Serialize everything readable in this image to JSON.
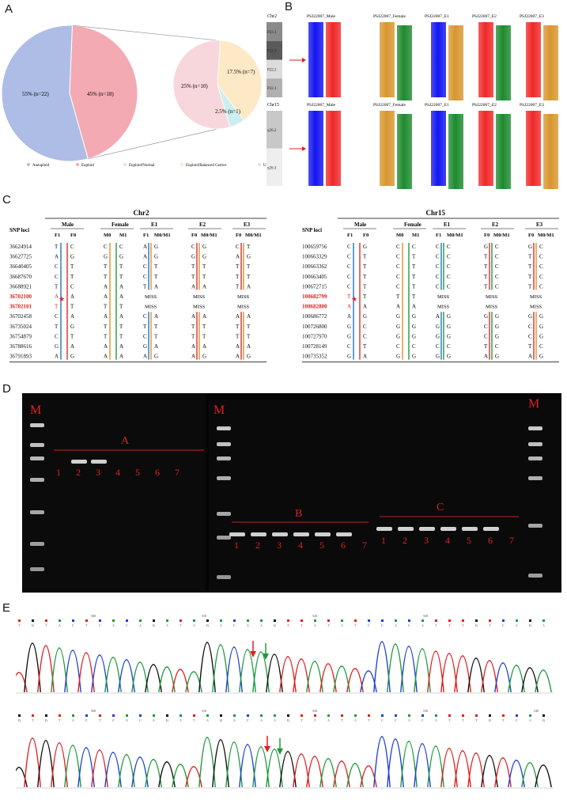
{
  "panels": {
    "A": "A",
    "B": "B",
    "C": "C",
    "D": "D",
    "E": "E"
  },
  "A": {
    "slices": [
      {
        "label": "55% (n=22)",
        "value": 55,
        "color": "#aebde6"
      },
      {
        "label": "45% (n=18)",
        "value": 45,
        "color": "#f3aab3"
      }
    ],
    "sub_slices": [
      {
        "label": "25% (n=10)",
        "value": 25,
        "color": "#f8d7dc"
      },
      {
        "label": "17.5% (n=7)",
        "value": 17.5,
        "color": "#fde9c5"
      },
      {
        "label": "2.5% (n=1)",
        "value": 2.5,
        "color": "#cdeeee"
      }
    ],
    "legend": [
      {
        "label": "Aneuploid",
        "color": "#aebde6"
      },
      {
        "label": "Euploid",
        "color": "#f3aab3"
      },
      {
        "label": "Euploid/Normal",
        "color": "#f8d7dc"
      },
      {
        "label": "Euploid/Balanced Carrier",
        "color": "#fde9c5"
      },
      {
        "label": "Unknown",
        "color": "#cdeeee"
      }
    ]
  },
  "B": {
    "rows": [
      {
        "chr": "Chr2",
        "bands": [
          "P23.1",
          "P22.3",
          "P22.2",
          "P22.1"
        ],
        "samples": [
          {
            "name": "PSJ22007_Male",
            "c": [
              "#1414f0",
              "#f02828"
            ]
          },
          {
            "name": "PSJ22007_Female",
            "c": [
              "#d8962e",
              "#1e8a2e"
            ]
          },
          {
            "name": "PSJ22007_E1",
            "c": [
              "#1414f0",
              "#d8962e"
            ]
          },
          {
            "name": "PSJ22007_E2",
            "c": [
              "#f02828",
              "#1e8a2e"
            ]
          },
          {
            "name": "PSJ22007_E3",
            "c": [
              "#f02828",
              "#d8962e"
            ]
          }
        ]
      },
      {
        "chr": "Chr15",
        "bands": [
          "q26.2",
          "q26.3"
        ],
        "samples": [
          {
            "name": "PSJ22007_Male",
            "c": [
              "#1414f0",
              "#f02828"
            ]
          },
          {
            "name": "PSJ22007_Female",
            "c": [
              "#d8962e",
              "#1e8a2e"
            ]
          },
          {
            "name": "PSJ22007_E1",
            "c": [
              "#1414f0",
              "#1e8a2e"
            ]
          },
          {
            "name": "PSJ22007_E2",
            "c": [
              "#f02828",
              "#1e8a2e"
            ]
          },
          {
            "name": "PSJ22007_E3",
            "c": [
              "#f02828",
              "#d8962e"
            ]
          }
        ]
      }
    ]
  },
  "C": {
    "tables": [
      {
        "title": "Chr2",
        "snp_header": "SNP loci",
        "groups": [
          "Male",
          "Female",
          "E1",
          "E2",
          "E3"
        ],
        "subs": [
          "F1",
          "F0",
          "M0",
          "M1",
          "F1",
          "M0/M1",
          "F0",
          "M0/M1",
          "F0",
          "M0/M1"
        ],
        "loci": [
          "36624914",
          "36627725",
          "36640405",
          "36687670",
          "36688921",
          "36702100",
          "36702101",
          "36702458",
          "36735024",
          "36754879",
          "36788616",
          "36791893"
        ],
        "highlight": [
          5,
          6
        ],
        "male": [
          [
            "T",
            "C"
          ],
          [
            "A",
            "G"
          ],
          [
            "C",
            "T"
          ],
          [
            "C",
            "T"
          ],
          [
            "T",
            "C"
          ],
          [
            "A",
            "A"
          ],
          [
            "T",
            "T"
          ],
          [
            "C",
            "A"
          ],
          [
            "T",
            "G"
          ],
          [
            "C",
            "T"
          ],
          [
            "G",
            "A"
          ],
          [
            "A",
            "G"
          ]
        ],
        "female": [
          [
            "C",
            "C"
          ],
          [
            "G",
            "G"
          ],
          [
            "T",
            "T"
          ],
          [
            "T",
            "T"
          ],
          [
            "A",
            "A"
          ],
          [
            "A",
            "A"
          ],
          [
            "T",
            "T"
          ],
          [
            "A",
            "A"
          ],
          [
            "T",
            "T"
          ],
          [
            "T",
            "T"
          ],
          [
            "A",
            "A"
          ],
          [
            "A",
            "A"
          ]
        ],
        "e": [
          [
            [
              "A",
              "G"
            ],
            [
              "C",
              "G"
            ],
            [
              "C",
              "T"
            ]
          ],
          [
            [
              "A",
              "G"
            ],
            [
              "G",
              "G"
            ],
            [
              "A",
              "G"
            ]
          ],
          [
            [
              "C",
              "T"
            ],
            [
              "T",
              "T"
            ],
            [
              "T",
              "T"
            ]
          ],
          [
            [
              "C",
              "T"
            ],
            [
              "T",
              "T"
            ],
            [
              "T",
              "T"
            ]
          ],
          [
            [
              "T",
              "A"
            ],
            [
              "A",
              "A"
            ],
            [
              "T",
              "A"
            ]
          ],
          [
            [
              "MISS",
              ""
            ],
            [
              "MISS",
              ""
            ],
            [
              "MISS",
              ""
            ]
          ],
          [
            [
              "MISS",
              ""
            ],
            [
              "MISS",
              ""
            ],
            [
              "MISS",
              ""
            ]
          ],
          [
            [
              "C",
              "A"
            ],
            [
              "A",
              "A"
            ],
            [
              "A",
              "A"
            ]
          ],
          [
            [
              "T",
              "T"
            ],
            [
              "T",
              "T"
            ],
            [
              "T",
              "T"
            ]
          ],
          [
            [
              "C",
              "T"
            ],
            [
              "T",
              "T"
            ],
            [
              "T",
              "T"
            ]
          ],
          [
            [
              "G",
              "A"
            ],
            [
              "A",
              "A"
            ],
            [
              "A",
              "A"
            ]
          ],
          [
            [
              "A",
              "G"
            ],
            [
              "A",
              "G"
            ],
            [
              "A",
              "G"
            ]
          ]
        ],
        "male_colors": [
          "#1f74c4",
          "#e02a2a"
        ],
        "female_colors": [
          "#e0902e",
          "#1e9a3e"
        ],
        "e_colors": [
          [
            "#1f74c4",
            "#e0902e"
          ],
          [
            "#e02a2a",
            "#e0902e"
          ],
          [
            "#e02a2a",
            "#e0902e"
          ]
        ]
      },
      {
        "title": "Chr15",
        "snp_header": "SNP loci",
        "groups": [
          "Male",
          "Female",
          "E1",
          "E2",
          "E3"
        ],
        "subs": [
          "F1",
          "F0",
          "M0",
          "M1",
          "F1",
          "M0/M1",
          "F0",
          "M0/M1",
          "F0",
          "M0/M1"
        ],
        "loci": [
          "100659756",
          "100663329",
          "100663362",
          "100663405",
          "100672715",
          "100682799",
          "100682800",
          "100686772",
          "100726800",
          "100727970",
          "100728149",
          "100735352"
        ],
        "highlight": [
          5,
          6
        ],
        "male": [
          [
            "C",
            "G"
          ],
          [
            "C",
            "T"
          ],
          [
            "C",
            "T"
          ],
          [
            "C",
            "T"
          ],
          [
            "C",
            "T"
          ],
          [
            "T",
            "T"
          ],
          [
            "A",
            "A"
          ],
          [
            "A",
            "G"
          ],
          [
            "G",
            "C"
          ],
          [
            "G",
            "C"
          ],
          [
            "C",
            "T"
          ],
          [
            "G",
            "A"
          ]
        ],
        "female": [
          [
            "C",
            "C"
          ],
          [
            "C",
            "T"
          ],
          [
            "C",
            "T"
          ],
          [
            "C",
            "T"
          ],
          [
            "C",
            "T"
          ],
          [
            "T",
            "T"
          ],
          [
            "A",
            "A"
          ],
          [
            "G",
            "G"
          ],
          [
            "G",
            "G"
          ],
          [
            "G",
            "G"
          ],
          [
            "C",
            "C"
          ],
          [
            "G",
            "G"
          ]
        ],
        "e": [
          [
            [
              "C",
              "C"
            ],
            [
              "G",
              "C"
            ],
            [
              "G",
              "C"
            ]
          ],
          [
            [
              "C",
              "C"
            ],
            [
              "T",
              "C"
            ],
            [
              "T",
              "C"
            ]
          ],
          [
            [
              "C",
              "C"
            ],
            [
              "T",
              "C"
            ],
            [
              "T",
              "C"
            ]
          ],
          [
            [
              "C",
              "C"
            ],
            [
              "T",
              "C"
            ],
            [
              "T",
              "C"
            ]
          ],
          [
            [
              "C",
              "C"
            ],
            [
              "T",
              "C"
            ],
            [
              "T",
              "C"
            ]
          ],
          [
            [
              "MISS",
              ""
            ],
            [
              "MISS",
              ""
            ],
            [
              "MISS",
              ""
            ]
          ],
          [
            [
              "MISS",
              ""
            ],
            [
              "MISS",
              ""
            ],
            [
              "MISS",
              ""
            ]
          ],
          [
            [
              "A",
              "G"
            ],
            [
              "G",
              "G"
            ],
            [
              "G",
              "G"
            ]
          ],
          [
            [
              "G",
              "G"
            ],
            [
              "C",
              "G"
            ],
            [
              "C",
              "G"
            ]
          ],
          [
            [
              "G",
              "G"
            ],
            [
              "C",
              "G"
            ],
            [
              "C",
              "G"
            ]
          ],
          [
            [
              "C",
              "C"
            ],
            [
              "T",
              "C"
            ],
            [
              "T",
              "C"
            ]
          ],
          [
            [
              "G",
              "G"
            ],
            [
              "A",
              "G"
            ],
            [
              "A",
              "G"
            ]
          ]
        ],
        "male_colors": [
          "#1f74c4",
          "#e02a2a"
        ],
        "female_colors": [
          "#e0902e",
          "#1e9a3e"
        ],
        "e_colors": [
          [
            "#1f74c4",
            "#1e9a3e"
          ],
          [
            "#e02a2a",
            "#1e9a3e"
          ],
          [
            "#e02a2a",
            "#e0902e"
          ]
        ]
      }
    ]
  },
  "D": {
    "marker": "M",
    "groups": [
      {
        "label": "A",
        "lanes": [
          "1",
          "2",
          "3",
          "4",
          "5",
          "6",
          "7"
        ],
        "present": [
          false,
          true,
          true,
          false,
          false,
          false,
          false
        ]
      },
      {
        "label": "B",
        "lanes": [
          "1",
          "2",
          "3",
          "4",
          "5",
          "6",
          "7"
        ],
        "present": [
          true,
          true,
          true,
          true,
          true,
          true,
          false
        ]
      },
      {
        "label": "C",
        "lanes": [
          "1",
          "2",
          "3",
          "4",
          "5",
          "6",
          "7"
        ],
        "present": [
          true,
          true,
          true,
          true,
          true,
          true,
          false
        ]
      }
    ]
  },
  "E": {
    "traces": [
      {
        "seq": "T G T A C T C A C A G A T A G A C A A G T T A T A T C C A C A T T T G T C A G A",
        "ticks": [
          "500",
          "510",
          "520",
          "530"
        ]
      },
      {
        "seq": "G T G T A C T C A C A G A T A G A C A A G T T A T A T C C A C A T T T G T C A G",
        "ticks": [
          "500",
          "510",
          "520",
          "530",
          "540"
        ]
      }
    ]
  }
}
